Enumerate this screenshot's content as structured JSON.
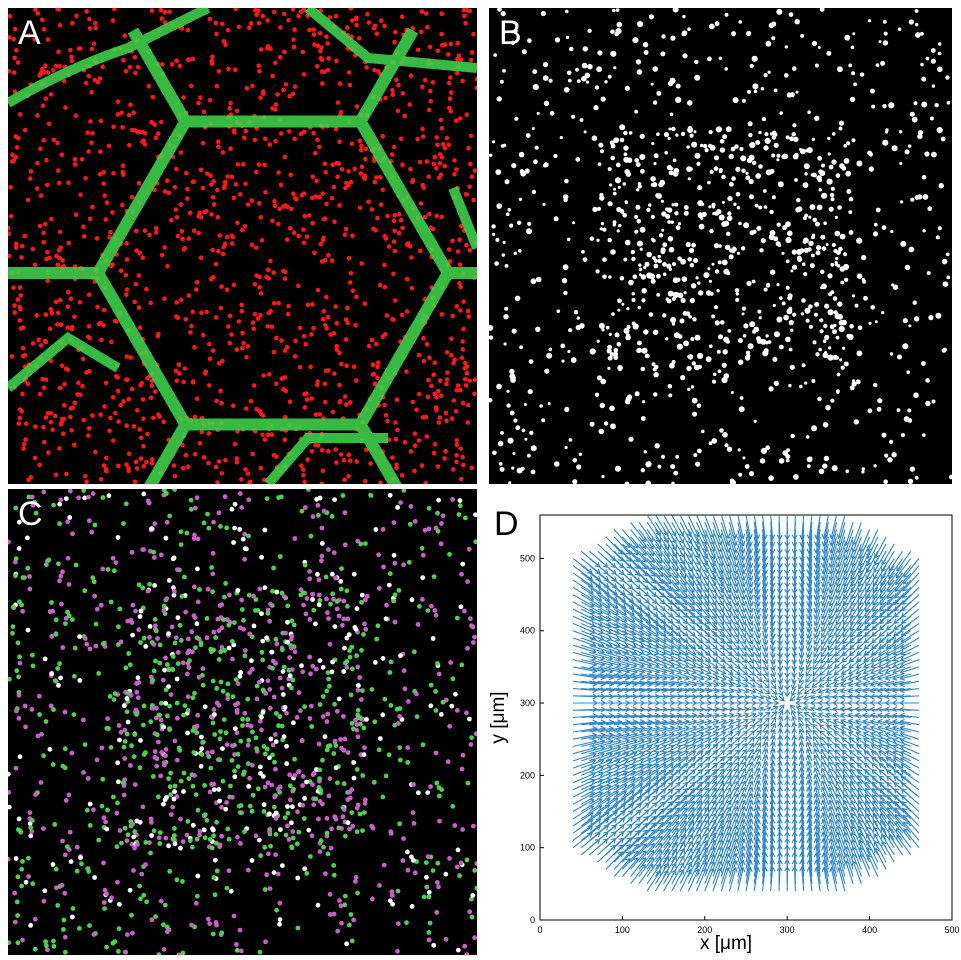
{
  "panels": {
    "a": {
      "label": "A",
      "colors": {
        "background": "#000000",
        "cells": "#ff1a1a",
        "walls": "#3fcf4a"
      }
    },
    "b": {
      "label": "B",
      "colors": {
        "background": "#000000",
        "cells": "#ffffff"
      }
    },
    "c": {
      "label": "C",
      "colors": {
        "background": "#000000",
        "series_1": "#4fd14f",
        "series_2": "#c760c7",
        "overlap": "#ffffff"
      }
    },
    "d": {
      "label": "D"
    }
  },
  "chart_data": {
    "type": "quiver",
    "xlabel": "x [μm]",
    "ylabel": "y [μm]",
    "xlim": [
      0,
      500
    ],
    "ylim": [
      0,
      560
    ],
    "xticks": [
      0,
      100,
      200,
      300,
      400,
      500
    ],
    "yticks": [
      0,
      100,
      200,
      300,
      400,
      500
    ],
    "xtick_labels": [
      "0",
      "100",
      "200",
      "300",
      "400",
      "500"
    ],
    "ytick_labels": [
      "0",
      "100",
      "200",
      "300",
      "400",
      "500"
    ],
    "arrow_color": "#2f86c9",
    "convergence_point": [
      300,
      300
    ],
    "field_extent_x": [
      40,
      460
    ],
    "field_extent_y": [
      40,
      560
    ],
    "grid": false
  }
}
